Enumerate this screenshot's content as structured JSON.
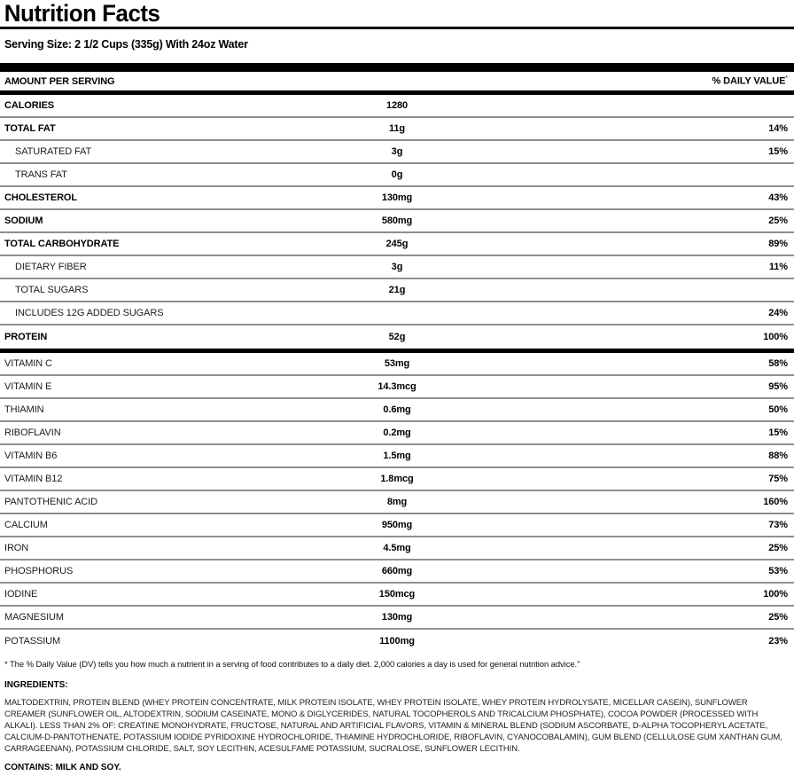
{
  "colors": {
    "text": "#000000",
    "bar": "#000000",
    "separator": "#8f8f8f",
    "background": "#ffffff"
  },
  "header": {
    "title": "Nutrition Facts",
    "serving_size": "Serving Size: 2 1/2 Cups (335g) With 24oz Water"
  },
  "table": {
    "amount_header": "AMOUNT PER SERVING",
    "dv_header": "% DAILY VALUE",
    "dv_mark": "*",
    "rows": [
      {
        "label": "CALORIES",
        "amount": "1280",
        "dv": ""
      },
      {
        "label": "TOTAL FAT",
        "amount": "11g",
        "dv": "14%"
      },
      {
        "label": "SATURATED FAT",
        "amount": "3g",
        "dv": "15%"
      },
      {
        "label": "TRANS FAT",
        "amount": "0g",
        "dv": ""
      },
      {
        "label": "CHOLESTEROL",
        "amount": "130mg",
        "dv": "43%"
      },
      {
        "label": "SODIUM",
        "amount": "580mg",
        "dv": "25%"
      },
      {
        "label": "TOTAL CARBOHYDRATE",
        "amount": "245g",
        "dv": "89%"
      },
      {
        "label": "DIETARY FIBER",
        "amount": "3g",
        "dv": "11%"
      },
      {
        "label": "TOTAL SUGARS",
        "amount": "21g",
        "dv": ""
      },
      {
        "label": "INCLUDES 12G ADDED SUGARS",
        "amount": "",
        "dv": "24%"
      },
      {
        "label": "PROTEIN",
        "amount": "52g",
        "dv": "100%"
      },
      {
        "label": "VITAMIN C",
        "amount": "53mg",
        "dv": "58%"
      },
      {
        "label": "VITAMIN E",
        "amount": "14.3mcg",
        "dv": "95%"
      },
      {
        "label": "THIAMIN",
        "amount": "0.6mg",
        "dv": "50%"
      },
      {
        "label": "RIBOFLAVIN",
        "amount": "0.2mg",
        "dv": "15%"
      },
      {
        "label": "VITAMIN B6",
        "amount": "1.5mg",
        "dv": "88%"
      },
      {
        "label": "VITAMIN B12",
        "amount": "1.8mcg",
        "dv": "75%"
      },
      {
        "label": "PANTOTHENIC ACID",
        "amount": "8mg",
        "dv": "160%"
      },
      {
        "label": "CALCIUM",
        "amount": "950mg",
        "dv": "73%"
      },
      {
        "label": "IRON",
        "amount": "4.5mg",
        "dv": "25%"
      },
      {
        "label": "PHOSPHORUS",
        "amount": "660mg",
        "dv": "53%"
      },
      {
        "label": "IODINE",
        "amount": "150mcg",
        "dv": "100%"
      },
      {
        "label": "MAGNESIUM",
        "amount": "130mg",
        "dv": "25%"
      },
      {
        "label": "POTASSIUM",
        "amount": "1100mg",
        "dv": "23%"
      }
    ]
  },
  "footnote": "* The % Daily Value (DV) tells you how much a nutrient in a serving of food contributes to a daily diet. 2,000 calories a day is used for general nutrition advice.\"",
  "ingredients": {
    "heading": "INGREDIENTS:",
    "text": "MALTODEXTRIN, PROTEIN BLEND (WHEY PROTEIN CONCENTRATE, MILK PROTEIN ISOLATE, WHEY PROTEIN ISOLATE, WHEY PROTEIN HYDROLYSATE, MICELLAR CASEIN), SUNFLOWER CREAMER (SUNFLOWER OIL, ALTODEXTRIN, SODIUM CASEINATE, MONO & DIGLYCERIDES, NATURAL TOCOPHEROLS AND TRICALCIUM PHOSPHATE), COCOA POWDER (PROCESSED WITH ALKALI). LESS THAN 2% OF: CREATINE MONOHYDRATE, FRUCTOSE, NATURAL AND ARTIFICIAL FLAVORS, VITAMIN & MINERAL BLEND (SODIUM ASCORBATE, D-ALPHA TOCOPHERYL ACETATE, CALCIUM-D-PANTOTHENATE, POTASSIUM IODIDE PYRIDOXINE HYDROCHLORIDE, THIAMINE HYDROCHLORIDE, RIBOFLAVIN, CYANOCOBALAMIN), GUM BLEND (CELLULOSE GUM XANTHAN GUM, CARRAGEENAN), POTASSIUM CHLORIDE, SALT, SOY LECITHIN, ACESULFAME POTASSIUM, SUCRALOSE, SUNFLOWER LECITHIN."
  },
  "contains": "CONTAINS: MILK AND SOY."
}
